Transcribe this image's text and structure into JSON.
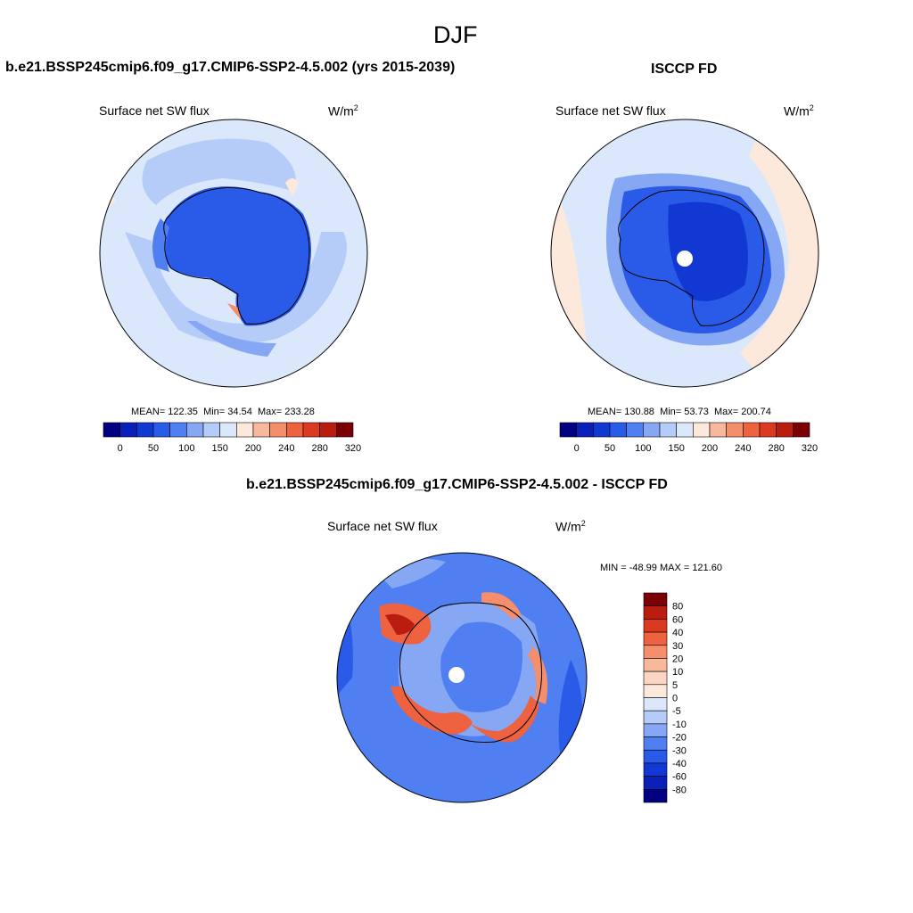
{
  "page_title": "DJF",
  "colors": {
    "abs_scale": [
      "#000080",
      "#0a1fb8",
      "#1238d4",
      "#2a5ae8",
      "#4f7ff0",
      "#86a7f4",
      "#b6ccf8",
      "#dbe8fc",
      "#fde8dc",
      "#f8b89c",
      "#f58e6c",
      "#ee6240",
      "#dc3a20",
      "#bb1c10",
      "#7a0006"
    ],
    "diff_scale": [
      "#000080",
      "#0a1fb8",
      "#1238d4",
      "#2a5ae8",
      "#4f7ff0",
      "#86a7f4",
      "#b6ccf8",
      "#dbe8fc",
      "#fde8dc",
      "#f8b89c",
      "#f58e6c",
      "#ee6240",
      "#dc3a20",
      "#bb1c10",
      "#7a0006"
    ]
  },
  "chart_data": [
    {
      "type": "heatmap",
      "projection": "south polar stereographic",
      "title": "b.e21.BSSP245cmip6.f09_g17.CMIP6-SSP2-4.5.002 (yrs 2015-2039)",
      "variable": "Surface net SW flux",
      "units": "W/m",
      "units_sup": "2",
      "stats": {
        "mean_label": "MEAN=",
        "mean": "122.35",
        "min_label": "Min=",
        "min": "34.54",
        "max_label": "Max=",
        "max": "233.28"
      },
      "colorbar_levels": [
        0,
        25,
        50,
        75,
        100,
        125,
        150,
        175,
        200,
        220,
        240,
        260,
        280,
        300,
        320
      ],
      "colorbar_labels": [
        "0",
        "50",
        "100",
        "150",
        "200",
        "240",
        "280",
        "320"
      ]
    },
    {
      "type": "heatmap",
      "projection": "south polar stereographic",
      "title": "ISCCP FD",
      "variable": "Surface net SW flux",
      "units": "W/m",
      "units_sup": "2",
      "stats": {
        "mean_label": "MEAN=",
        "mean": "130.88",
        "min_label": "Min=",
        "min": "53.73",
        "max_label": "Max=",
        "max": "200.74"
      },
      "colorbar_levels": [
        0,
        25,
        50,
        75,
        100,
        125,
        150,
        175,
        200,
        220,
        240,
        260,
        280,
        300,
        320
      ],
      "colorbar_labels": [
        "0",
        "50",
        "100",
        "150",
        "200",
        "240",
        "280",
        "320"
      ]
    },
    {
      "type": "heatmap",
      "projection": "south polar stereographic",
      "title": "b.e21.BSSP245cmip6.f09_g17.CMIP6-SSP2-4.5.002 - ISCCP FD",
      "variable": "Surface net SW flux",
      "units": "W/m",
      "units_sup": "2",
      "stats_text": "MIN = -48.99  MAX = 121.60",
      "colorbar_labels": [
        "80",
        "60",
        "40",
        "30",
        "20",
        "10",
        "5",
        "0",
        "-5",
        "-10",
        "-20",
        "-30",
        "-40",
        "-60",
        "-80"
      ]
    }
  ]
}
